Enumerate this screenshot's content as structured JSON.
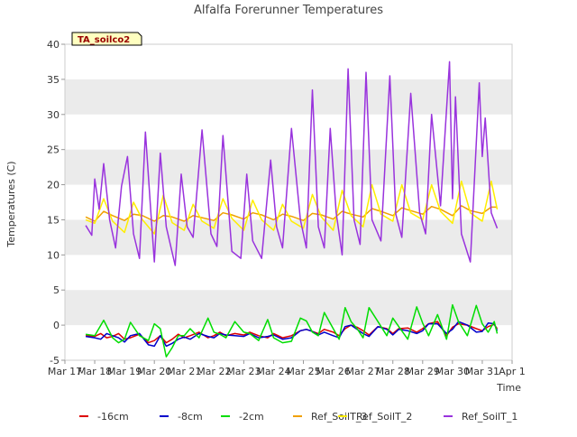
{
  "chart_data": {
    "type": "line",
    "title": "Alfalfa Forerunner Temperatures",
    "xlabel": "Time",
    "ylabel": "Temperatures (C)",
    "ylim": [
      -5,
      40
    ],
    "yticks": [
      -5,
      0,
      5,
      10,
      15,
      20,
      25,
      30,
      35,
      40
    ],
    "xlim": [
      0,
      15
    ],
    "xticks": [
      0,
      1,
      2,
      3,
      4,
      5,
      6,
      7,
      8,
      9,
      10,
      11,
      12,
      13,
      14,
      15
    ],
    "xtick_labels": [
      "Mar 17",
      "Mar 18",
      "Mar 19",
      "Mar 20",
      "Mar 21",
      "Mar 22",
      "Mar 23",
      "Mar 24",
      "Mar 25",
      "Mar 26",
      "Mar 27",
      "Mar 28",
      "Mar 29",
      "Mar 30",
      "Mar 31",
      "Apr 1"
    ],
    "grid": "alternating horizontal bands",
    "legend_position": "bottom",
    "annotation": "TA_soilco2",
    "colors": {
      "band": "#ebebeb",
      "annotation_bg": "#ffffc0",
      "annotation_text": "#990000"
    },
    "series": [
      {
        "name": "-16cm",
        "color": "#dd0000",
        "x": [
          0.7,
          1.0,
          1.2,
          1.4,
          1.6,
          1.8,
          2.0,
          2.2,
          2.5,
          2.8,
          3.0,
          3.2,
          3.4,
          3.6,
          3.8,
          4.0,
          4.2,
          4.5,
          4.8,
          5.0,
          5.2,
          5.4,
          5.7,
          6.0,
          6.2,
          6.5,
          6.8,
          7.0,
          7.3,
          7.6,
          7.9,
          8.1,
          8.3,
          8.5,
          8.7,
          9.0,
          9.2,
          9.4,
          9.6,
          9.8,
          10.0,
          10.2,
          10.5,
          10.8,
          11.0,
          11.2,
          11.5,
          11.8,
          12.0,
          12.2,
          12.5,
          12.8,
          13.0,
          13.2,
          13.5,
          13.8,
          14.0,
          14.2,
          14.4,
          14.5
        ],
        "y": [
          -1.5,
          -1.6,
          -1.2,
          -1.8,
          -1.6,
          -1.2,
          -2.0,
          -1.8,
          -1.3,
          -2.5,
          -2.2,
          -1.5,
          -2.5,
          -2.0,
          -1.3,
          -1.8,
          -1.5,
          -1.0,
          -1.8,
          -1.5,
          -1.0,
          -1.5,
          -1.2,
          -1.4,
          -1.0,
          -1.5,
          -1.8,
          -1.2,
          -1.8,
          -1.5,
          -0.8,
          -0.6,
          -0.9,
          -1.2,
          -0.6,
          -1.0,
          -1.5,
          -0.5,
          0.0,
          -0.3,
          -0.8,
          -1.4,
          -0.2,
          -0.5,
          -1.2,
          -0.5,
          -0.4,
          -1.0,
          -0.5,
          0.2,
          0.5,
          -1.5,
          -0.3,
          0.2,
          0.0,
          -0.5,
          -0.8,
          -0.2,
          0.1,
          -0.5
        ]
      },
      {
        "name": "-8cm",
        "color": "#0000cc",
        "x": [
          0.7,
          1.0,
          1.2,
          1.4,
          1.6,
          1.8,
          2.0,
          2.2,
          2.5,
          2.8,
          3.0,
          3.2,
          3.4,
          3.6,
          3.8,
          4.0,
          4.2,
          4.5,
          4.8,
          5.0,
          5.2,
          5.4,
          5.7,
          6.0,
          6.2,
          6.5,
          6.8,
          7.0,
          7.3,
          7.6,
          7.9,
          8.1,
          8.3,
          8.5,
          8.7,
          9.0,
          9.2,
          9.4,
          9.6,
          9.8,
          10.0,
          10.2,
          10.5,
          10.8,
          11.0,
          11.2,
          11.5,
          11.8,
          12.0,
          12.2,
          12.5,
          12.8,
          13.0,
          13.2,
          13.5,
          13.8,
          14.0,
          14.2,
          14.4,
          14.5
        ],
        "y": [
          -1.6,
          -1.8,
          -2.0,
          -1.2,
          -1.5,
          -1.8,
          -2.4,
          -1.5,
          -1.2,
          -2.8,
          -3.0,
          -1.5,
          -3.0,
          -2.6,
          -2.0,
          -1.7,
          -2.0,
          -1.2,
          -1.6,
          -1.8,
          -1.2,
          -1.4,
          -1.5,
          -1.6,
          -1.2,
          -1.8,
          -1.6,
          -1.4,
          -2.0,
          -1.8,
          -0.8,
          -0.6,
          -0.9,
          -1.4,
          -1.0,
          -1.5,
          -1.8,
          -0.2,
          0.0,
          -0.6,
          -1.2,
          -1.6,
          -0.2,
          -0.6,
          -1.4,
          -0.6,
          -0.8,
          -1.2,
          -0.8,
          0.2,
          0.2,
          -1.2,
          -0.6,
          0.5,
          0.0,
          -1.0,
          -0.9,
          0.3,
          0.2,
          -0.8
        ]
      },
      {
        "name": "-2cm",
        "color": "#00dd00",
        "x": [
          0.7,
          1.0,
          1.3,
          1.6,
          1.8,
          2.0,
          2.2,
          2.5,
          2.8,
          3.0,
          3.2,
          3.4,
          3.6,
          3.8,
          4.0,
          4.2,
          4.5,
          4.8,
          5.0,
          5.2,
          5.4,
          5.7,
          6.0,
          6.2,
          6.5,
          6.8,
          7.0,
          7.3,
          7.6,
          7.9,
          8.1,
          8.3,
          8.5,
          8.7,
          9.0,
          9.2,
          9.4,
          9.6,
          9.8,
          10.0,
          10.2,
          10.5,
          10.8,
          11.0,
          11.2,
          11.5,
          11.8,
          12.0,
          12.2,
          12.5,
          12.8,
          13.0,
          13.2,
          13.5,
          13.8,
          14.0,
          14.2,
          14.4,
          14.5
        ],
        "y": [
          -1.3,
          -1.5,
          0.7,
          -1.8,
          -2.5,
          -2.0,
          0.4,
          -1.5,
          -2.2,
          0.2,
          -0.5,
          -4.5,
          -3.2,
          -1.5,
          -1.5,
          -0.5,
          -1.8,
          1.0,
          -1.0,
          -1.3,
          -1.8,
          0.5,
          -1.0,
          -1.2,
          -2.2,
          0.8,
          -1.8,
          -2.5,
          -2.3,
          1.0,
          0.6,
          -1.0,
          -1.5,
          1.8,
          -0.5,
          -2.0,
          2.5,
          0.5,
          -0.5,
          -1.8,
          2.5,
          0.5,
          -1.5,
          1.0,
          -0.2,
          -2.0,
          2.6,
          0.3,
          -1.5,
          1.5,
          -2.0,
          2.9,
          0.5,
          -1.5,
          2.8,
          0.2,
          -1.0,
          0.5,
          -1.2
        ]
      },
      {
        "name": "Ref_SoilT_3",
        "color": "#f0a000",
        "x": [
          0.7,
          1.0,
          1.3,
          1.6,
          2.0,
          2.3,
          2.6,
          3.0,
          3.3,
          3.6,
          4.0,
          4.3,
          4.6,
          5.0,
          5.3,
          5.6,
          6.0,
          6.3,
          6.6,
          7.0,
          7.3,
          7.6,
          8.0,
          8.3,
          8.6,
          9.0,
          9.3,
          9.6,
          10.0,
          10.3,
          10.6,
          11.0,
          11.3,
          11.6,
          12.0,
          12.3,
          12.6,
          13.0,
          13.3,
          13.6,
          14.0,
          14.3,
          14.5
        ],
        "y": [
          15.4,
          14.8,
          16.2,
          15.6,
          14.9,
          15.8,
          15.6,
          14.8,
          15.6,
          15.4,
          14.8,
          15.6,
          15.3,
          14.9,
          16.0,
          15.7,
          15.1,
          16.0,
          15.7,
          15.0,
          15.8,
          15.5,
          14.9,
          15.9,
          15.7,
          15.1,
          16.2,
          15.8,
          15.4,
          16.6,
          16.2,
          15.6,
          16.7,
          16.3,
          15.8,
          16.9,
          16.5,
          15.6,
          17.0,
          16.3,
          15.9,
          16.8,
          16.8
        ]
      },
      {
        "name": "Ref_SoilT_2",
        "color": "#ffee00",
        "x": [
          0.7,
          1.0,
          1.3,
          1.6,
          2.0,
          2.3,
          2.6,
          3.0,
          3.3,
          3.6,
          4.0,
          4.3,
          4.6,
          5.0,
          5.3,
          5.6,
          6.0,
          6.3,
          6.6,
          7.0,
          7.3,
          7.6,
          8.0,
          8.3,
          8.6,
          9.0,
          9.3,
          9.6,
          10.0,
          10.3,
          10.6,
          11.0,
          11.3,
          11.6,
          12.0,
          12.3,
          12.6,
          13.0,
          13.3,
          13.6,
          14.0,
          14.3,
          14.5
        ],
        "y": [
          15.0,
          14.5,
          18.0,
          14.8,
          13.2,
          17.5,
          15.0,
          13.0,
          18.5,
          14.6,
          13.5,
          17.2,
          14.8,
          13.8,
          18.0,
          15.2,
          13.5,
          17.8,
          15.0,
          13.5,
          17.2,
          14.8,
          13.8,
          18.6,
          15.4,
          13.5,
          19.2,
          15.6,
          14.0,
          20.0,
          15.8,
          14.8,
          20.0,
          16.0,
          15.0,
          20.0,
          16.2,
          14.5,
          20.5,
          16.0,
          14.8,
          20.5,
          16.5
        ]
      },
      {
        "name": "Ref_SoilT_1",
        "color": "#9933dd",
        "x": [
          0.7,
          0.9,
          1.0,
          1.15,
          1.3,
          1.5,
          1.7,
          1.9,
          2.1,
          2.3,
          2.5,
          2.7,
          2.9,
          3.0,
          3.2,
          3.4,
          3.7,
          3.9,
          4.1,
          4.3,
          4.6,
          4.9,
          5.1,
          5.3,
          5.6,
          5.9,
          6.1,
          6.3,
          6.6,
          6.9,
          7.1,
          7.3,
          7.6,
          7.9,
          8.1,
          8.3,
          8.5,
          8.7,
          8.9,
          9.1,
          9.3,
          9.5,
          9.7,
          9.9,
          10.1,
          10.3,
          10.6,
          10.9,
          11.1,
          11.3,
          11.6,
          11.9,
          12.1,
          12.3,
          12.6,
          12.9,
          13.0,
          13.1,
          13.3,
          13.6,
          13.9,
          14.0,
          14.1,
          14.3,
          14.5
        ],
        "y": [
          14.2,
          12.8,
          20.8,
          16.5,
          23.0,
          15.0,
          11.0,
          19.8,
          24.0,
          13.0,
          9.5,
          27.5,
          15.0,
          9.0,
          24.5,
          14.0,
          8.5,
          21.5,
          14.0,
          12.5,
          27.8,
          13.0,
          11.2,
          27.0,
          10.5,
          9.5,
          21.5,
          12.0,
          9.5,
          23.5,
          14.0,
          11.0,
          28.0,
          15.0,
          11.0,
          33.5,
          14.0,
          11.0,
          28.0,
          16.0,
          10.0,
          36.5,
          15.0,
          11.5,
          36.0,
          15.0,
          12.0,
          35.5,
          15.8,
          12.5,
          33.0,
          16.0,
          13.0,
          30.0,
          17.0,
          37.5,
          18.0,
          32.5,
          13.0,
          9.0,
          34.5,
          24.0,
          29.5,
          16.0,
          13.8
        ]
      }
    ]
  }
}
